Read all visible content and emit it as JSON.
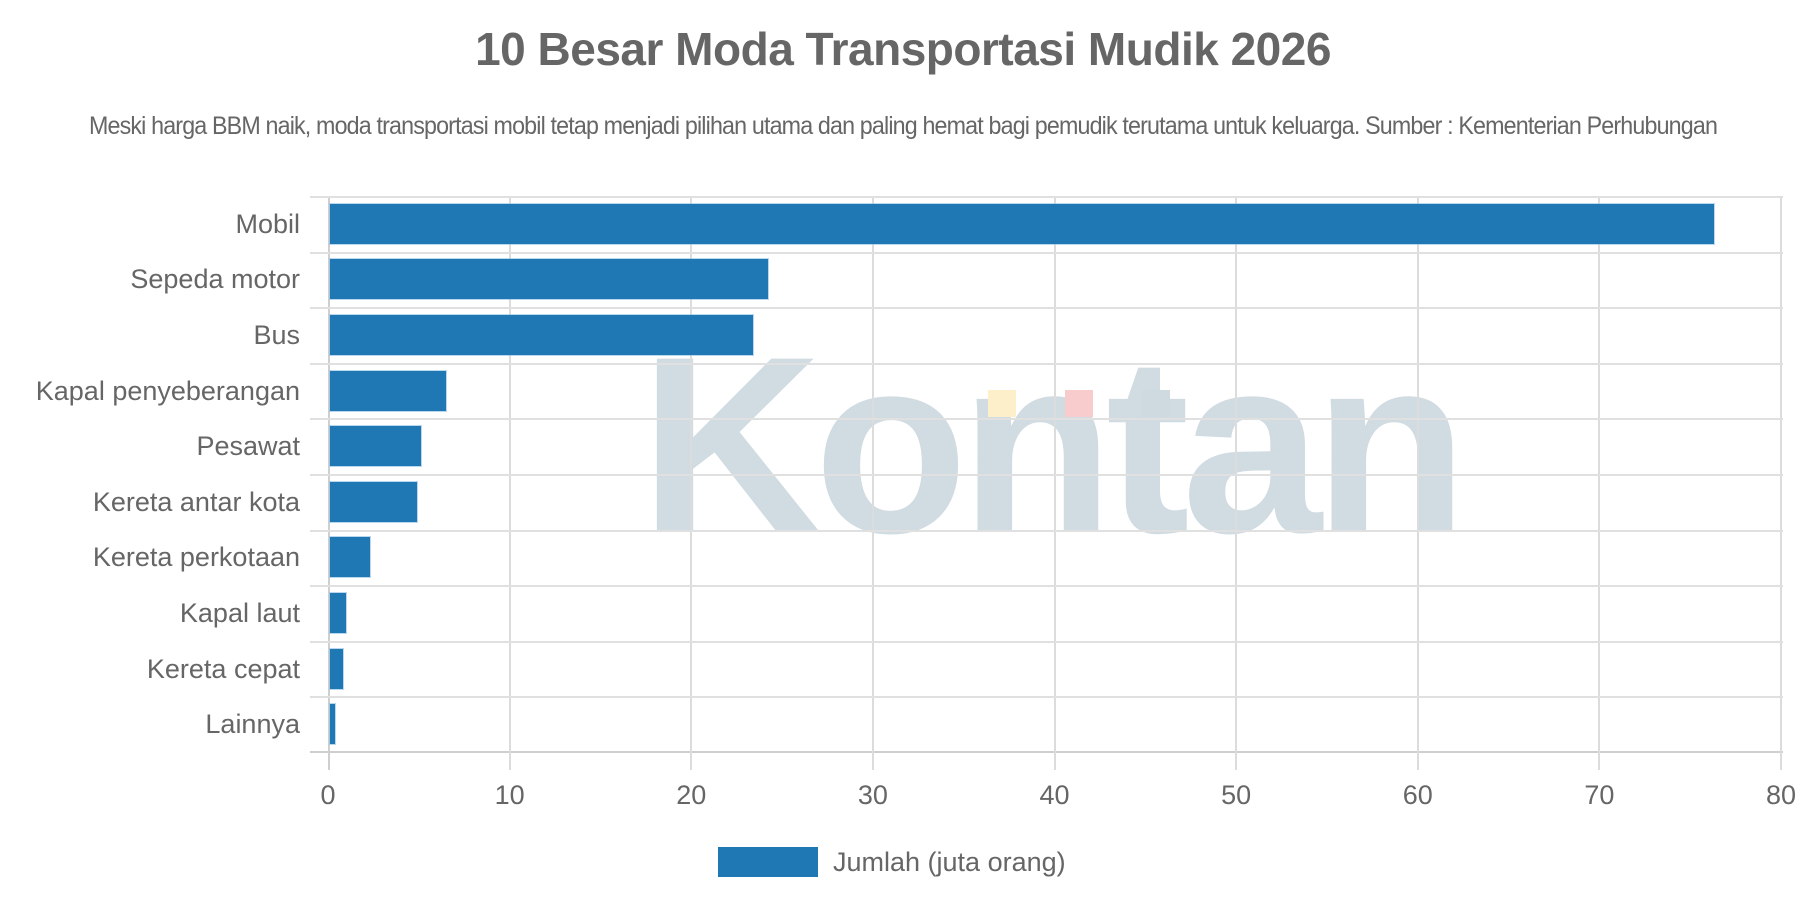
{
  "header": {
    "title": "10 Besar Moda Transportasi Mudik 2026",
    "subtitle": "Meski harga BBM naik, moda transportasi mobil tetap menjadi pilihan utama dan paling hemat bagi pemudik terutama untuk keluarga. Sumber : Kementerian Perhubungan"
  },
  "watermark": {
    "text": "Kontan",
    "text_color": "#aabeca",
    "accent_colors": [
      "#fdefc9",
      "#f8cccc",
      "#cfd9e0"
    ]
  },
  "legend": {
    "label": "Jumlah (juta orang)",
    "color": "#1f77b4"
  },
  "axis": {
    "x_ticks": [
      "0",
      "10",
      "20",
      "30",
      "40",
      "50",
      "60",
      "70",
      "80"
    ]
  },
  "categories": [
    {
      "label": "Mobil",
      "value": 76.2
    },
    {
      "label": "Sepeda motor",
      "value": 24.1
    },
    {
      "label": "Bus",
      "value": 23.3
    },
    {
      "label": "Kapal penyeberangan",
      "value": 6.4
    },
    {
      "label": "Pesawat",
      "value": 5.0
    },
    {
      "label": "Kereta antar kota",
      "value": 4.8
    },
    {
      "label": "Kereta perkotaan",
      "value": 2.2
    },
    {
      "label": "Kapal laut",
      "value": 0.9
    },
    {
      "label": "Kereta cepat",
      "value": 0.7
    },
    {
      "label": "Lainnya",
      "value": 0.3
    }
  ],
  "chart_data": {
    "type": "bar",
    "orientation": "horizontal",
    "title": "10 Besar Moda Transportasi Mudik 2026",
    "subtitle": "Meski harga BBM naik, moda transportasi mobil tetap menjadi pilihan utama dan paling hemat bagi pemudik terutama untuk keluarga. Sumber : Kementerian Perhubungan",
    "categories": [
      "Mobil",
      "Sepeda motor",
      "Bus",
      "Kapal penyeberangan",
      "Pesawat",
      "Kereta antar kota",
      "Kereta perkotaan",
      "Kapal laut",
      "Kereta cepat",
      "Lainnya"
    ],
    "series": [
      {
        "name": "Jumlah (juta orang)",
        "color": "#1f77b4",
        "values": [
          76.2,
          24.1,
          23.3,
          6.4,
          5.0,
          4.8,
          2.2,
          0.9,
          0.7,
          0.3
        ]
      }
    ],
    "xlabel": "",
    "ylabel": "",
    "xlim": [
      0,
      80
    ],
    "x_ticks": [
      0,
      10,
      20,
      30,
      40,
      50,
      60,
      70,
      80
    ],
    "grid": true,
    "legend_position": "bottom"
  }
}
